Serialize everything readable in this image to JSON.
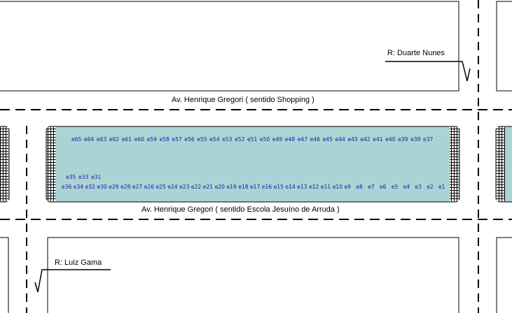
{
  "labels": {
    "street_top": "R: Duarte Nunes",
    "street_bottom": "R: Luiz Gama",
    "avenue_top": "Av. Henrique Gregori ( sentido Shopping )",
    "avenue_bottom": "Av. Henrique Gregori ( sentido Escola Jesuíno de Arruda )"
  },
  "colors": {
    "parking_fill": "#aad4d4",
    "spot_text": "#1a1aa0",
    "lines": "#000000"
  },
  "spots": {
    "row_top": [
      "e65",
      "e64",
      "e63",
      "e62",
      "e61",
      "e60",
      "e59",
      "e58",
      "e57",
      "e56",
      "e55",
      "e54",
      "e53",
      "e52",
      "e51",
      "e50",
      "e49",
      "e48",
      "e47",
      "e46",
      "e45",
      "e44",
      "e43",
      "e42",
      "e41",
      "e40",
      "e39",
      "e38",
      "e37"
    ],
    "row_middle": [
      "e35",
      "e33",
      "e31"
    ],
    "row_bottom": [
      "e36",
      "e34",
      "e32",
      "e30",
      "e29",
      "e28",
      "e27",
      "e26",
      "e25",
      "e24",
      "e23",
      "e22",
      "e21",
      "e20",
      "e19",
      "e18",
      "e17",
      "e16",
      "e15",
      "e14",
      "e13",
      "e12",
      "e11",
      "e10",
      "e9",
      "e8",
      "e7",
      "e6",
      "e5",
      "e4",
      "e3",
      "e2",
      "e1"
    ]
  }
}
